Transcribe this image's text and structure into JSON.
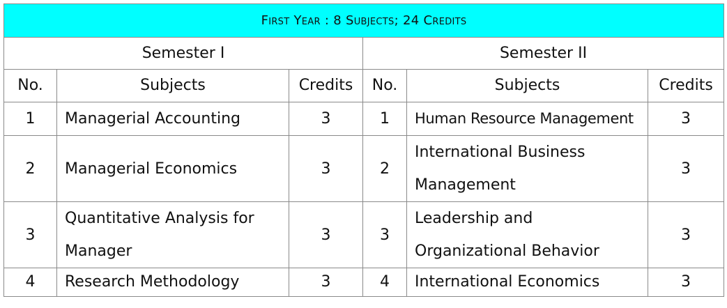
{
  "title": "First Year : 8 Subjects; 24 Credits",
  "semesters": [
    {
      "name": "Semester I",
      "headers": {
        "no": "No.",
        "subjects": "Subjects",
        "credits": "Credits"
      },
      "rows": [
        {
          "no": "1",
          "subject_lines": [
            "Managerial Accounting"
          ],
          "credits": "3"
        },
        {
          "no": "2",
          "subject_lines": [
            "Managerial Economics"
          ],
          "credits": "3"
        },
        {
          "no": "3",
          "subject_lines": [
            "Quantitative Analysis for",
            "Manager"
          ],
          "credits": "3"
        },
        {
          "no": "4",
          "subject_lines": [
            "Research Methodology"
          ],
          "credits": "3"
        }
      ]
    },
    {
      "name": "Semester II",
      "headers": {
        "no": "No.",
        "subjects": "Subjects",
        "credits": "Credits"
      },
      "rows": [
        {
          "no": "1",
          "subject_lines": [
            "Human Resource Management"
          ],
          "credits": "3"
        },
        {
          "no": "2",
          "subject_lines": [
            "International Business",
            "Management"
          ],
          "credits": "3"
        },
        {
          "no": "3",
          "subject_lines": [
            "Leadership and",
            "Organizational Behavior"
          ],
          "credits": "3"
        },
        {
          "no": "4",
          "subject_lines": [
            "International Economics"
          ],
          "credits": "3"
        }
      ]
    }
  ],
  "colors": {
    "title_background": "#00ffff",
    "border": "#8a8a8a"
  }
}
